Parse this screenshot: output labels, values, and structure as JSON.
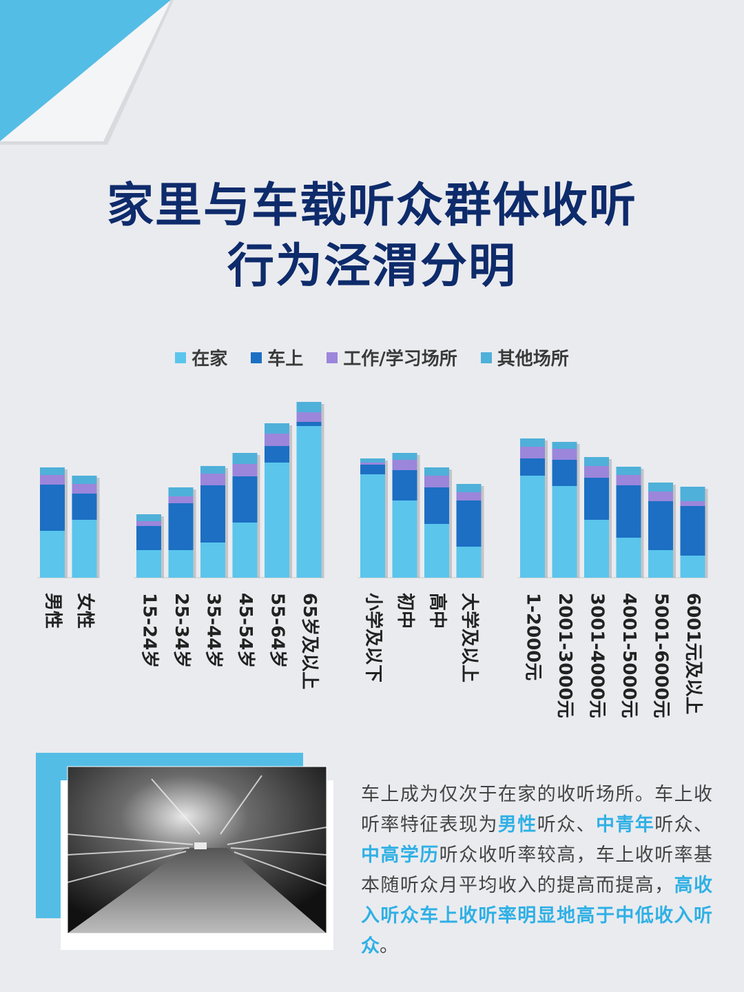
{
  "title": {
    "line1": "家里与车载听众群体收听",
    "line2": "行为泾渭分明"
  },
  "colors": {
    "title": "#0e2b6b",
    "accent": "#2fb0e5",
    "corner": "#54bde6",
    "text": "#444444"
  },
  "legend": {
    "items": [
      {
        "label": "在家",
        "color": "#5bc5ec"
      },
      {
        "label": "车上",
        "color": "#1c6fc3"
      },
      {
        "label": "工作/学习场所",
        "color": "#9b86db"
      },
      {
        "label": "其他场所",
        "color": "#4fb0d9"
      }
    ]
  },
  "chart_data": {
    "type": "bar",
    "stacked": true,
    "groups": [
      {
        "categories": [
          "男性",
          "女性"
        ]
      },
      {
        "categories": [
          "15-24岁",
          "25-34岁",
          "35-44岁",
          "45-54岁",
          "55-64岁",
          "65岁及以上"
        ]
      },
      {
        "categories": [
          "小学及以下",
          "初中",
          "高中",
          "大学及以上"
        ]
      },
      {
        "categories": [
          "1-2000元",
          "2001-3000元",
          "3001-4000元",
          "4001-5000元",
          "5001-6000元",
          "6001元及以上"
        ]
      }
    ],
    "categories": [
      "男性",
      "女性",
      "15-24岁",
      "25-34岁",
      "35-44岁",
      "45-54岁",
      "55-64岁",
      "65岁及以上",
      "小学及以下",
      "初中",
      "高中",
      "大学及以上",
      "1-2000元",
      "2001-3000元",
      "3001-4000元",
      "4001-5000元",
      "5001-6000元",
      "6001元及以上"
    ],
    "series": [
      {
        "name": "在家",
        "color": "#5bc5ec",
        "values": [
          68,
          84,
          40,
          40,
          51,
          80,
          167,
          220,
          150,
          112,
          78,
          45,
          148,
          133,
          84,
          58,
          40,
          32
        ]
      },
      {
        "name": "车上",
        "color": "#1c6fc3",
        "values": [
          67,
          38,
          35,
          68,
          83,
          67,
          24,
          6,
          14,
          44,
          53,
          67,
          25,
          38,
          61,
          76,
          71,
          72
        ]
      },
      {
        "name": "工作/学习场所",
        "color": "#9b86db",
        "values": [
          14,
          14,
          7,
          10,
          17,
          18,
          18,
          14,
          3,
          15,
          17,
          12,
          17,
          16,
          17,
          15,
          14,
          7
        ]
      },
      {
        "name": "其他场所",
        "color": "#4fb0d9",
        "values": [
          11,
          12,
          10,
          13,
          11,
          16,
          15,
          15,
          6,
          10,
          12,
          12,
          12,
          10,
          13,
          12,
          13,
          21
        ]
      }
    ],
    "grid": false,
    "legend_position": "top-center",
    "title": "",
    "xlabel": "",
    "ylabel": ""
  },
  "caption": {
    "parts": [
      {
        "text": "车上成为仅次于在家的收听场所。车上收听率特征表现为",
        "highlight": false
      },
      {
        "text": "男性",
        "highlight": true
      },
      {
        "text": "听众、",
        "highlight": false
      },
      {
        "text": "中青年",
        "highlight": true
      },
      {
        "text": "听众、",
        "highlight": false
      },
      {
        "text": "中高学历",
        "highlight": true
      },
      {
        "text": "听众收听率较高，车上收听率基本随听众月平均收入的提高而提高，",
        "highlight": false
      },
      {
        "text": "高收入听众车上收听率明显地高于中低收入听众",
        "highlight": true
      },
      {
        "text": "。",
        "highlight": false
      }
    ]
  },
  "photo": {
    "subject": "night-road-motion-blur"
  }
}
